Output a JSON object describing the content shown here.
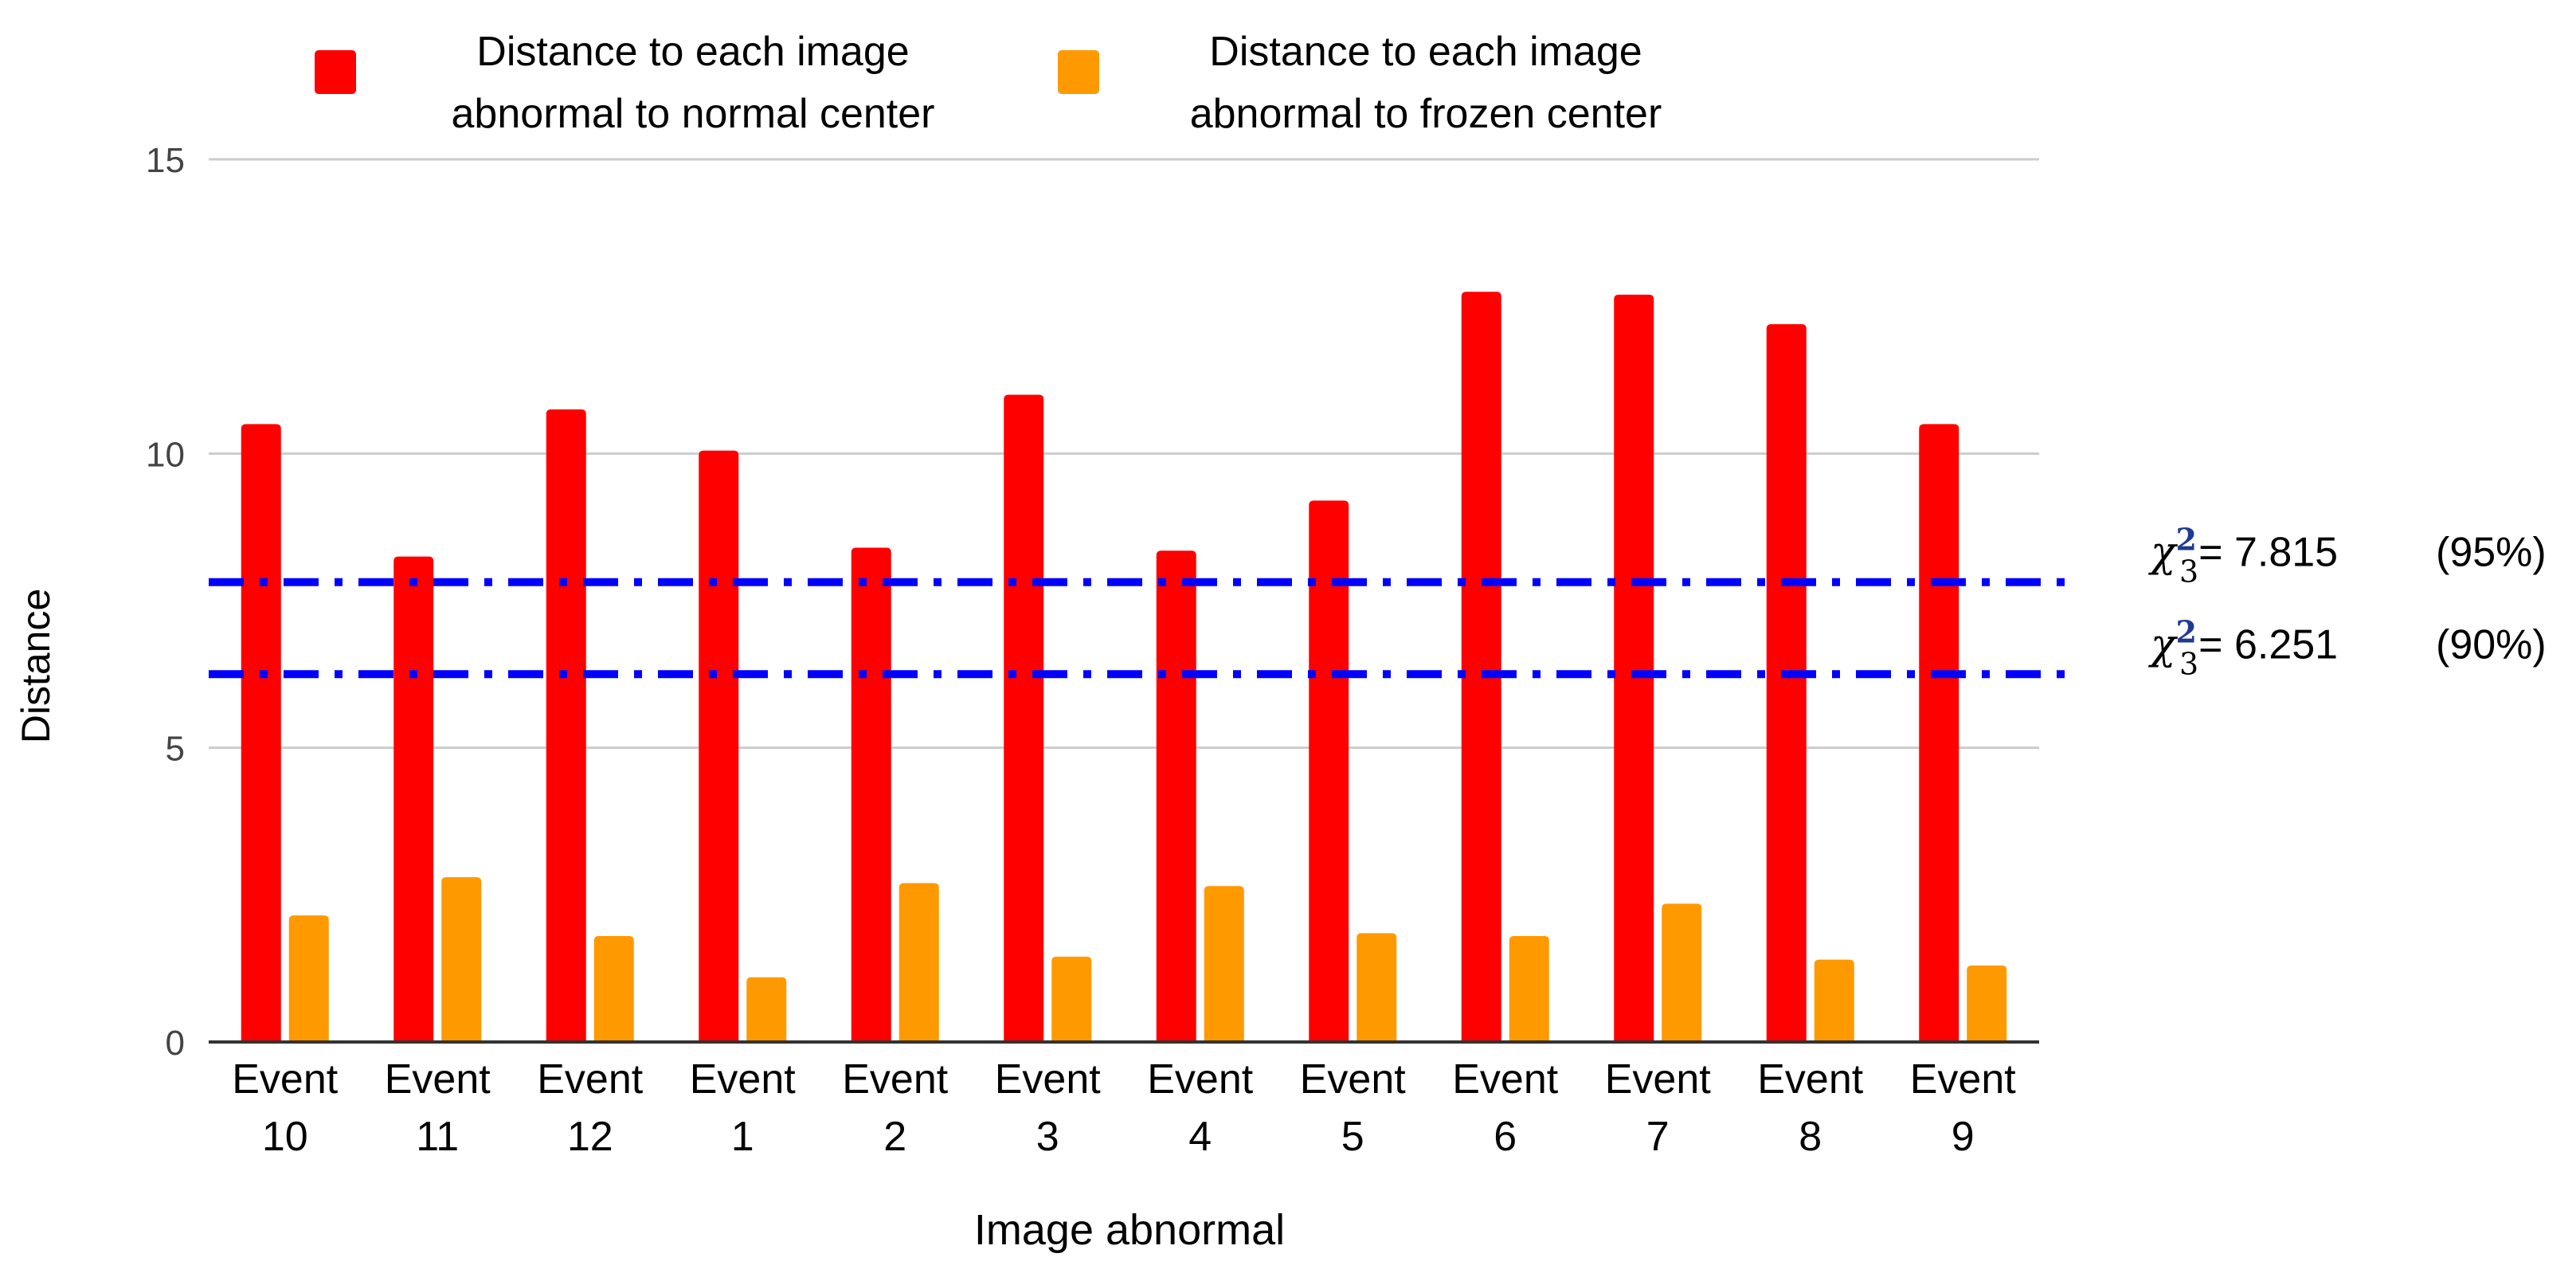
{
  "chart_data": {
    "type": "bar",
    "xlabel": "Image abnormal",
    "ylabel": "Distance",
    "ylim": [
      0,
      15
    ],
    "yticks": [
      0,
      5,
      10,
      15
    ],
    "grid": true,
    "legend_position": "top",
    "categories": [
      [
        "Event",
        "10"
      ],
      [
        "Event",
        "11"
      ],
      [
        "Event",
        "12"
      ],
      [
        "Event",
        "1"
      ],
      [
        "Event",
        "2"
      ],
      [
        "Event",
        "3"
      ],
      [
        "Event",
        "4"
      ],
      [
        "Event",
        "5"
      ],
      [
        "Event",
        "6"
      ],
      [
        "Event",
        "7"
      ],
      [
        "Event",
        "8"
      ],
      [
        "Event",
        "9"
      ]
    ],
    "series": [
      {
        "name": [
          "Distance to each image",
          "abnormal to normal center"
        ],
        "color": "#ff0000",
        "values": [
          10.5,
          8.25,
          10.75,
          10.05,
          8.4,
          11.0,
          8.35,
          9.2,
          12.75,
          12.7,
          12.2,
          10.5
        ]
      },
      {
        "name": [
          "Distance to each image",
          "abnormal to frozen center"
        ],
        "color": "#ff9900",
        "values": [
          2.15,
          2.8,
          1.8,
          1.1,
          2.7,
          1.45,
          2.65,
          1.85,
          1.8,
          2.35,
          1.4,
          1.3
        ]
      }
    ],
    "reference_lines": [
      {
        "value": 7.815,
        "color": "#0000ff",
        "chi": "χ",
        "sup": "2",
        "sub": "3",
        "label": "= 7.815",
        "conf": "(95%)"
      },
      {
        "value": 6.251,
        "color": "#0000ff",
        "chi": "χ",
        "sup": "2",
        "sub": "3",
        "label": "= 6.251",
        "conf": "(90%)"
      }
    ]
  }
}
